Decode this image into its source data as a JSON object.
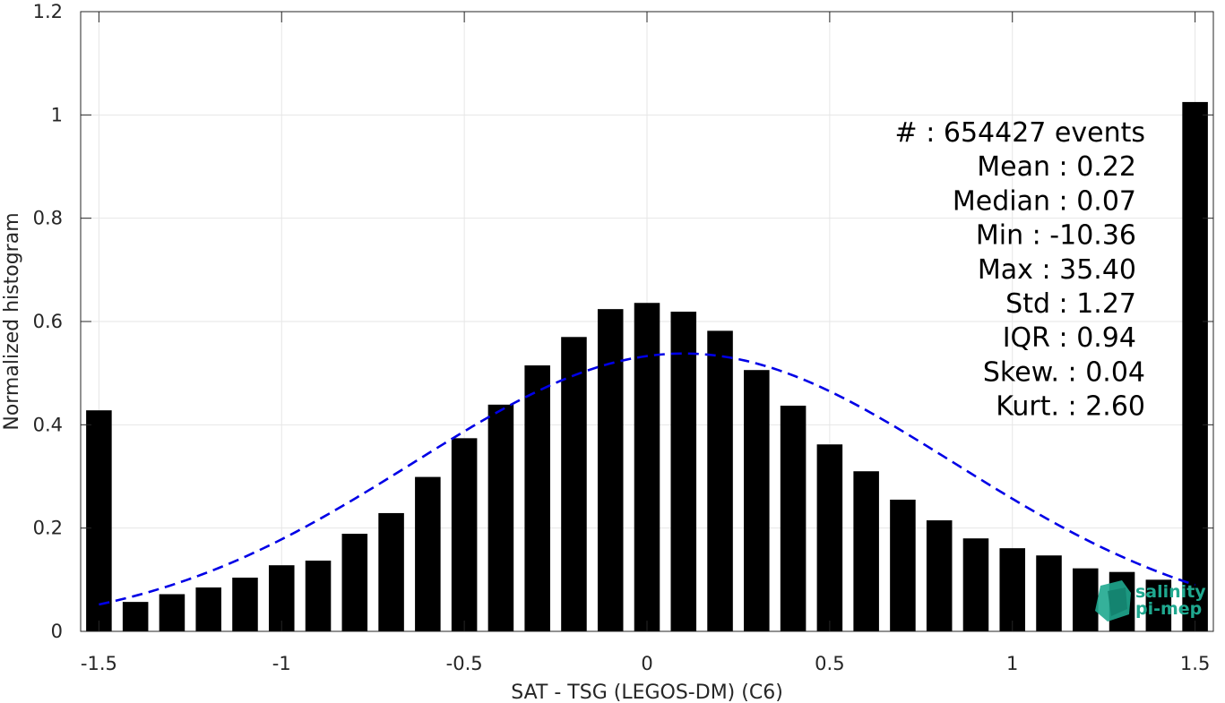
{
  "chart_data": {
    "type": "bar",
    "xlabel": "SAT - TSG (LEGOS-DM) (C6)",
    "ylabel": "Normalized histogram",
    "xlim": [
      -1.55,
      1.55
    ],
    "ylim": [
      0,
      1.2
    ],
    "grid": true,
    "x_ticks": [
      -1.5,
      -1,
      -0.5,
      0,
      0.5,
      1,
      1.5
    ],
    "x_tick_labels": [
      "-1.5",
      "-1",
      "-0.5",
      "0",
      "0.5",
      "1",
      "1.5"
    ],
    "y_ticks": [
      0,
      0.2,
      0.4,
      0.6,
      0.8,
      1,
      1.2
    ],
    "y_tick_labels": [
      "0",
      "0.2",
      "0.4",
      "0.6",
      "0.8",
      "1",
      "1.2"
    ],
    "bar_width": 0.07,
    "x": [
      -1.5,
      -1.4,
      -1.3,
      -1.2,
      -1.1,
      -1.0,
      -0.9,
      -0.8,
      -0.7,
      -0.6,
      -0.5,
      -0.4,
      -0.3,
      -0.2,
      -0.1,
      0.0,
      0.1,
      0.2,
      0.3,
      0.4,
      0.5,
      0.6,
      0.7,
      0.8,
      0.9,
      1.0,
      1.1,
      1.2,
      1.3,
      1.4,
      1.5
    ],
    "values": [
      0.428,
      0.057,
      0.072,
      0.085,
      0.104,
      0.128,
      0.137,
      0.189,
      0.229,
      0.299,
      0.374,
      0.439,
      0.515,
      0.57,
      0.624,
      0.636,
      0.619,
      0.582,
      0.506,
      0.437,
      0.362,
      0.31,
      0.255,
      0.215,
      0.18,
      0.161,
      0.147,
      0.122,
      0.115,
      0.1,
      1.025
    ],
    "bar_color": "#000000",
    "fit_curve": {
      "style": "dashed",
      "color": "#0000e6",
      "mean": 0.1,
      "std": 0.74,
      "peak": 0.538,
      "x_range": [
        -1.5,
        1.5
      ]
    },
    "stats_lines": [
      "#  : 654427 events",
      "Mean : 0.22",
      "Median : 0.07",
      "Min : -10.36",
      "Max : 35.40",
      "Std : 1.27",
      "IQR : 0.94",
      "Skew. : 0.04",
      "Kurt. : 2.60"
    ]
  },
  "logo": {
    "line1": "salinity",
    "line2": "pi-mep",
    "color": "#1fa88f"
  }
}
